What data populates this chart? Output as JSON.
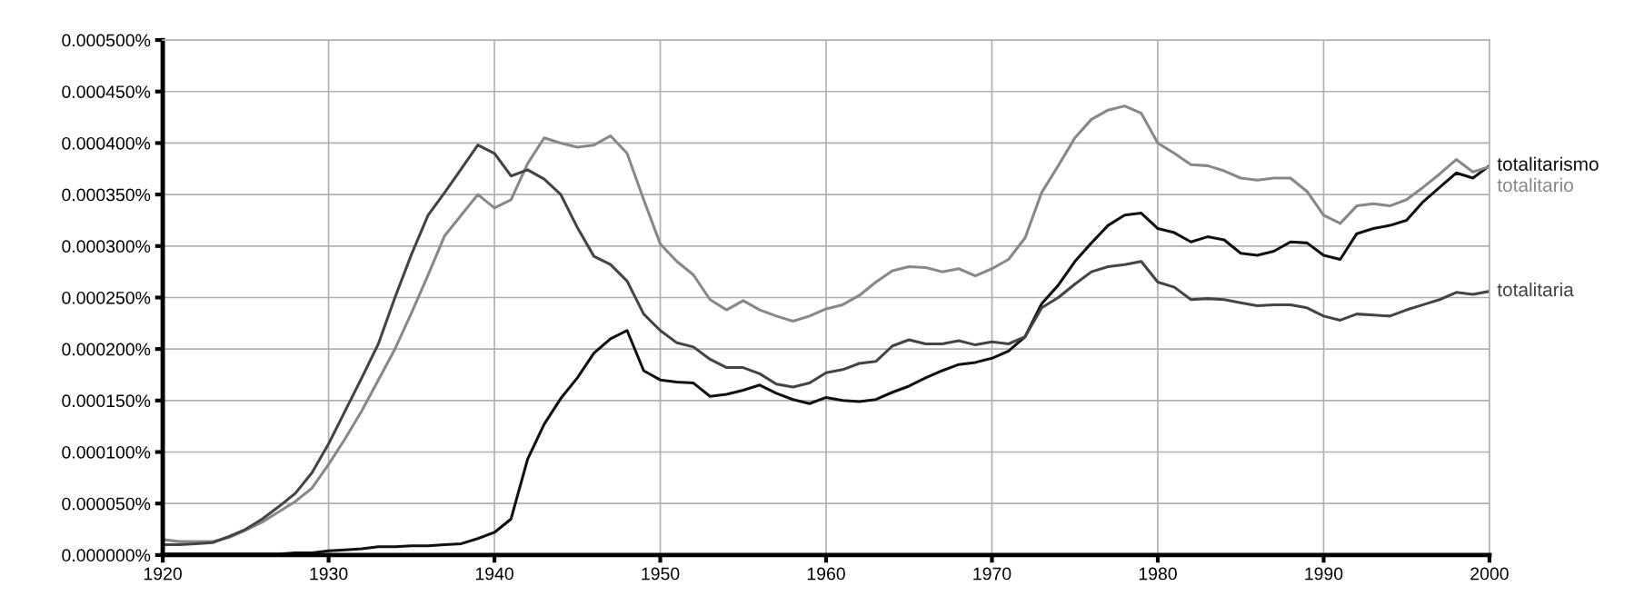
{
  "chart_data": {
    "type": "line",
    "x": [
      1920,
      1921,
      1922,
      1923,
      1924,
      1925,
      1926,
      1927,
      1928,
      1929,
      1930,
      1931,
      1932,
      1933,
      1934,
      1935,
      1936,
      1937,
      1938,
      1939,
      1940,
      1941,
      1942,
      1943,
      1944,
      1945,
      1946,
      1947,
      1948,
      1949,
      1950,
      1951,
      1952,
      1953,
      1954,
      1955,
      1956,
      1957,
      1958,
      1959,
      1960,
      1961,
      1962,
      1963,
      1964,
      1965,
      1966,
      1967,
      1968,
      1969,
      1970,
      1971,
      1972,
      1973,
      1974,
      1975,
      1976,
      1977,
      1978,
      1979,
      1980,
      1981,
      1982,
      1983,
      1984,
      1985,
      1986,
      1987,
      1988,
      1989,
      1990,
      1991,
      1992,
      1993,
      1994,
      1995,
      1996,
      1997,
      1998,
      1999,
      2000
    ],
    "series": [
      {
        "name": "totalitarismo",
        "color": "#111111",
        "values": [
          1e-06,
          1e-06,
          1e-06,
          1e-06,
          1e-06,
          1e-06,
          1e-06,
          1e-06,
          2e-06,
          2e-06,
          4e-06,
          5e-06,
          6e-06,
          8e-06,
          8e-06,
          9e-06,
          9e-06,
          1e-05,
          1.1e-05,
          1.6e-05,
          2.2e-05,
          3.5e-05,
          9.3e-05,
          0.000127,
          0.000152,
          0.000172,
          0.000196,
          0.00021,
          0.000218,
          0.000179,
          0.00017,
          0.000168,
          0.000167,
          0.000154,
          0.000156,
          0.00016,
          0.000165,
          0.000157,
          0.000151,
          0.000147,
          0.000153,
          0.00015,
          0.000149,
          0.000151,
          0.000158,
          0.000164,
          0.000172,
          0.000179,
          0.000185,
          0.000187,
          0.000191,
          0.000198,
          0.000212,
          0.000244,
          0.000262,
          0.000285,
          0.000303,
          0.00032,
          0.00033,
          0.000332,
          0.000317,
          0.000313,
          0.000304,
          0.000309,
          0.000306,
          0.000293,
          0.000291,
          0.000295,
          0.000304,
          0.000303,
          0.000291,
          0.000287,
          0.000312,
          0.000317,
          0.00032,
          0.000325,
          0.000343,
          0.000357,
          0.000371,
          0.000366,
          0.000378
        ]
      },
      {
        "name": "totalitario",
        "color": "#888888",
        "values": [
          1.5e-05,
          1.3e-05,
          1.3e-05,
          1.3e-05,
          1.7e-05,
          2.4e-05,
          3.2e-05,
          4.2e-05,
          5.2e-05,
          6.5e-05,
          8.8e-05,
          0.000113,
          0.00014,
          0.00017,
          0.0002,
          0.000235,
          0.000272,
          0.00031,
          0.00033,
          0.00035,
          0.000337,
          0.000345,
          0.00038,
          0.000405,
          0.0004,
          0.000396,
          0.000398,
          0.000407,
          0.00039,
          0.000345,
          0.000302,
          0.000285,
          0.000272,
          0.000248,
          0.000238,
          0.000247,
          0.000238,
          0.000232,
          0.000227,
          0.000232,
          0.000239,
          0.000243,
          0.000252,
          0.000265,
          0.000276,
          0.00028,
          0.000279,
          0.000275,
          0.000278,
          0.000271,
          0.000278,
          0.000287,
          0.000308,
          0.000352,
          0.000378,
          0.000405,
          0.000423,
          0.000432,
          0.000436,
          0.000429,
          0.0004,
          0.00039,
          0.000379,
          0.000378,
          0.000373,
          0.000366,
          0.000364,
          0.000366,
          0.000366,
          0.000353,
          0.00033,
          0.000322,
          0.000339,
          0.000341,
          0.000339,
          0.000345,
          0.000357,
          0.00037,
          0.000384,
          0.000372,
          0.000377
        ]
      },
      {
        "name": "totalitaria",
        "color": "#444444",
        "values": [
          1e-05,
          1e-05,
          1.1e-05,
          1.2e-05,
          1.8e-05,
          2.5e-05,
          3.5e-05,
          4.7e-05,
          6e-05,
          8e-05,
          0.000108,
          0.00014,
          0.000172,
          0.000205,
          0.00025,
          0.000292,
          0.00033,
          0.000352,
          0.000375,
          0.000398,
          0.00039,
          0.000368,
          0.000374,
          0.000365,
          0.00035,
          0.000318,
          0.00029,
          0.000282,
          0.000266,
          0.000234,
          0.000218,
          0.000206,
          0.000202,
          0.00019,
          0.000182,
          0.000182,
          0.000176,
          0.000166,
          0.000163,
          0.000167,
          0.000177,
          0.00018,
          0.000186,
          0.000188,
          0.000203,
          0.000209,
          0.000205,
          0.000205,
          0.000208,
          0.000204,
          0.000207,
          0.000205,
          0.000212,
          0.00024,
          0.00025,
          0.000263,
          0.000275,
          0.00028,
          0.000282,
          0.000285,
          0.000265,
          0.00026,
          0.000248,
          0.000249,
          0.000248,
          0.000245,
          0.000242,
          0.000243,
          0.000243,
          0.00024,
          0.000232,
          0.000228,
          0.000234,
          0.000233,
          0.000232,
          0.000238,
          0.000243,
          0.000248,
          0.000255,
          0.000253,
          0.000256
        ]
      }
    ],
    "xlim": [
      1920,
      2000
    ],
    "xticks": [
      1920,
      1930,
      1940,
      1950,
      1960,
      1970,
      1980,
      1990,
      2000
    ],
    "ylim": [
      0,
      0.0005
    ],
    "yticks": [
      {
        "value": 0,
        "label": "0.000000%"
      },
      {
        "value": 5e-05,
        "label": "0.000050%"
      },
      {
        "value": 0.0001,
        "label": "0.000100%"
      },
      {
        "value": 0.00015,
        "label": "0.000150%"
      },
      {
        "value": 0.0002,
        "label": "0.000200%"
      },
      {
        "value": 0.00025,
        "label": "0.000250%"
      },
      {
        "value": 0.0003,
        "label": "0.000300%"
      },
      {
        "value": 0.00035,
        "label": "0.000350%"
      },
      {
        "value": 0.0004,
        "label": "0.000400%"
      },
      {
        "value": 0.00045,
        "label": "0.000450%"
      },
      {
        "value": 0.0005,
        "label": "0.000500%"
      }
    ],
    "grid": true,
    "legend": false
  }
}
